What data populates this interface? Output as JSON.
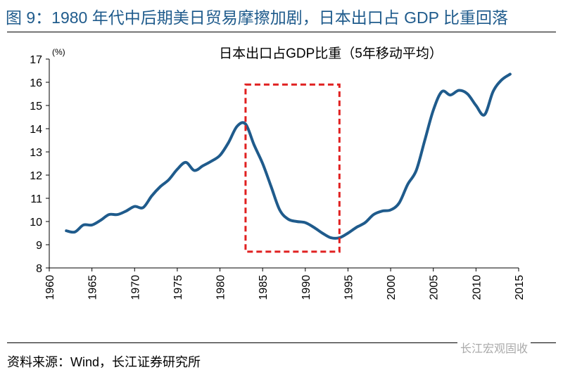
{
  "title": "图 9：1980 年代中后期美日贸易摩擦加剧，日本出口占 GDP 比重回落",
  "source": "资料来源：Wind，长江证券研究所",
  "watermark": "长江宏观固收",
  "chart_data": {
    "type": "line",
    "title": "日本出口占GDP比重（5年移动平均）",
    "ylabel": "(%)",
    "xlabel": "",
    "xlim": [
      1960,
      2015
    ],
    "ylim": [
      8,
      17
    ],
    "xticks": [
      1960,
      1965,
      1970,
      1975,
      1980,
      1985,
      1990,
      1995,
      2000,
      2005,
      2010,
      2015
    ],
    "yticks": [
      8,
      9,
      10,
      11,
      12,
      13,
      14,
      15,
      16,
      17
    ],
    "grid": false,
    "line_color": "#1f5b8c",
    "highlight_color": "#e02020",
    "highlight_box": {
      "x": [
        1983,
        1994
      ],
      "y": [
        8.7,
        15.9
      ]
    },
    "series": [
      {
        "name": "日本出口占GDP比重（5年移动平均）",
        "x": [
          1962,
          1963,
          1964,
          1965,
          1966,
          1967,
          1968,
          1969,
          1970,
          1971,
          1972,
          1973,
          1974,
          1975,
          1976,
          1977,
          1978,
          1979,
          1980,
          1981,
          1982,
          1983,
          1984,
          1985,
          1986,
          1987,
          1988,
          1989,
          1990,
          1991,
          1992,
          1993,
          1994,
          1995,
          1996,
          1997,
          1998,
          1999,
          2000,
          2001,
          2002,
          2003,
          2004,
          2005,
          2006,
          2007,
          2008,
          2009,
          2010,
          2011,
          2012,
          2013,
          2014
        ],
        "values": [
          9.6,
          9.55,
          9.85,
          9.85,
          10.05,
          10.3,
          10.3,
          10.45,
          10.65,
          10.6,
          11.1,
          11.5,
          11.8,
          12.25,
          12.55,
          12.2,
          12.4,
          12.6,
          12.85,
          13.4,
          14.1,
          14.2,
          13.3,
          12.5,
          11.5,
          10.5,
          10.1,
          10.0,
          9.95,
          9.75,
          9.5,
          9.3,
          9.3,
          9.5,
          9.75,
          9.95,
          10.3,
          10.45,
          10.5,
          10.8,
          11.6,
          12.2,
          13.5,
          14.8,
          15.6,
          15.45,
          15.65,
          15.5,
          15.0,
          14.6,
          15.6,
          16.1,
          16.35
        ]
      }
    ]
  }
}
